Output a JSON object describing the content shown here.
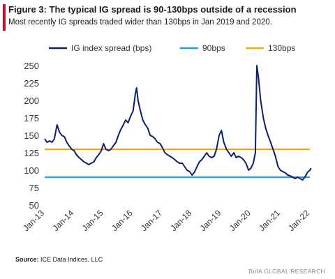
{
  "header": {
    "title": "Figure 3: The typical IG spread is 90-130bps outside of a recession",
    "subtitle": "Most recently IG spreads traded wider than 130bps in Jan 2019 and 2020."
  },
  "footer": {
    "source_label": "Source:",
    "source_text": "ICE Data Indices, LLC",
    "brand": "BofA GLOBAL RESEARCH"
  },
  "colors": {
    "series_main": "#0b1f6b",
    "line_90": "#1aa3e0",
    "line_130": "#f2a900",
    "axis_text": "#333333",
    "accent": "#c8102e"
  },
  "chart_data": {
    "type": "line",
    "ylim": [
      50,
      250
    ],
    "yticks": [
      50,
      75,
      100,
      125,
      150,
      175,
      200,
      225,
      250
    ],
    "xlim": [
      2013.0,
      2022.0
    ],
    "xticks": [
      {
        "x": 2013,
        "label": "Jan-13"
      },
      {
        "x": 2014,
        "label": "Jan-14"
      },
      {
        "x": 2015,
        "label": "Jan-15"
      },
      {
        "x": 2016,
        "label": "Jan-16"
      },
      {
        "x": 2017,
        "label": "Jan-17"
      },
      {
        "x": 2018,
        "label": "Jan-18"
      },
      {
        "x": 2019,
        "label": "Jan-19"
      },
      {
        "x": 2020,
        "label": "Jan-20"
      },
      {
        "x": 2021,
        "label": "Jan-21"
      },
      {
        "x": 2022,
        "label": "Jan-22"
      }
    ],
    "legend_position": "top",
    "grid": false,
    "series": [
      {
        "name": "IG index spread (bps)",
        "points": [
          [
            2013.0,
            145
          ],
          [
            2013.08,
            140
          ],
          [
            2013.17,
            142
          ],
          [
            2013.25,
            140
          ],
          [
            2013.33,
            145
          ],
          [
            2013.42,
            165
          ],
          [
            2013.5,
            155
          ],
          [
            2013.58,
            150
          ],
          [
            2013.67,
            148
          ],
          [
            2013.75,
            140
          ],
          [
            2013.83,
            135
          ],
          [
            2013.92,
            130
          ],
          [
            2014.0,
            128
          ],
          [
            2014.08,
            122
          ],
          [
            2014.17,
            118
          ],
          [
            2014.25,
            115
          ],
          [
            2014.33,
            112
          ],
          [
            2014.42,
            110
          ],
          [
            2014.5,
            108
          ],
          [
            2014.58,
            110
          ],
          [
            2014.67,
            112
          ],
          [
            2014.75,
            118
          ],
          [
            2014.83,
            122
          ],
          [
            2014.92,
            128
          ],
          [
            2015.0,
            138
          ],
          [
            2015.08,
            130
          ],
          [
            2015.17,
            128
          ],
          [
            2015.25,
            130
          ],
          [
            2015.33,
            135
          ],
          [
            2015.42,
            140
          ],
          [
            2015.5,
            150
          ],
          [
            2015.58,
            158
          ],
          [
            2015.67,
            165
          ],
          [
            2015.75,
            172
          ],
          [
            2015.83,
            168
          ],
          [
            2015.92,
            178
          ],
          [
            2016.0,
            185
          ],
          [
            2016.08,
            210
          ],
          [
            2016.12,
            218
          ],
          [
            2016.17,
            200
          ],
          [
            2016.25,
            185
          ],
          [
            2016.33,
            172
          ],
          [
            2016.42,
            165
          ],
          [
            2016.5,
            160
          ],
          [
            2016.58,
            150
          ],
          [
            2016.67,
            148
          ],
          [
            2016.75,
            145
          ],
          [
            2016.83,
            140
          ],
          [
            2016.92,
            138
          ],
          [
            2017.0,
            132
          ],
          [
            2017.08,
            125
          ],
          [
            2017.17,
            122
          ],
          [
            2017.25,
            120
          ],
          [
            2017.33,
            118
          ],
          [
            2017.42,
            115
          ],
          [
            2017.5,
            112
          ],
          [
            2017.58,
            110
          ],
          [
            2017.67,
            110
          ],
          [
            2017.75,
            105
          ],
          [
            2017.83,
            100
          ],
          [
            2017.92,
            98
          ],
          [
            2018.0,
            93
          ],
          [
            2018.08,
            97
          ],
          [
            2018.17,
            105
          ],
          [
            2018.25,
            112
          ],
          [
            2018.33,
            115
          ],
          [
            2018.42,
            120
          ],
          [
            2018.5,
            125
          ],
          [
            2018.58,
            120
          ],
          [
            2018.67,
            118
          ],
          [
            2018.75,
            120
          ],
          [
            2018.83,
            130
          ],
          [
            2018.92,
            150
          ],
          [
            2019.0,
            157
          ],
          [
            2019.08,
            140
          ],
          [
            2019.17,
            130
          ],
          [
            2019.25,
            125
          ],
          [
            2019.33,
            120
          ],
          [
            2019.42,
            125
          ],
          [
            2019.5,
            118
          ],
          [
            2019.58,
            120
          ],
          [
            2019.67,
            118
          ],
          [
            2019.75,
            115
          ],
          [
            2019.83,
            110
          ],
          [
            2019.92,
            100
          ],
          [
            2020.0,
            103
          ],
          [
            2020.08,
            110
          ],
          [
            2020.15,
            125
          ],
          [
            2020.2,
            250
          ],
          [
            2020.25,
            235
          ],
          [
            2020.33,
            200
          ],
          [
            2020.42,
            175
          ],
          [
            2020.5,
            160
          ],
          [
            2020.58,
            150
          ],
          [
            2020.67,
            140
          ],
          [
            2020.75,
            130
          ],
          [
            2020.83,
            120
          ],
          [
            2020.92,
            105
          ],
          [
            2021.0,
            100
          ],
          [
            2021.08,
            98
          ],
          [
            2021.17,
            96
          ],
          [
            2021.25,
            93
          ],
          [
            2021.33,
            92
          ],
          [
            2021.42,
            90
          ],
          [
            2021.5,
            88
          ],
          [
            2021.58,
            90
          ],
          [
            2021.67,
            88
          ],
          [
            2021.75,
            86
          ],
          [
            2021.83,
            90
          ],
          [
            2021.92,
            97
          ],
          [
            2022.0,
            100
          ],
          [
            2022.04,
            103
          ]
        ]
      },
      {
        "name": "90bps",
        "constant": 90
      },
      {
        "name": "130bps",
        "constant": 130
      }
    ]
  }
}
